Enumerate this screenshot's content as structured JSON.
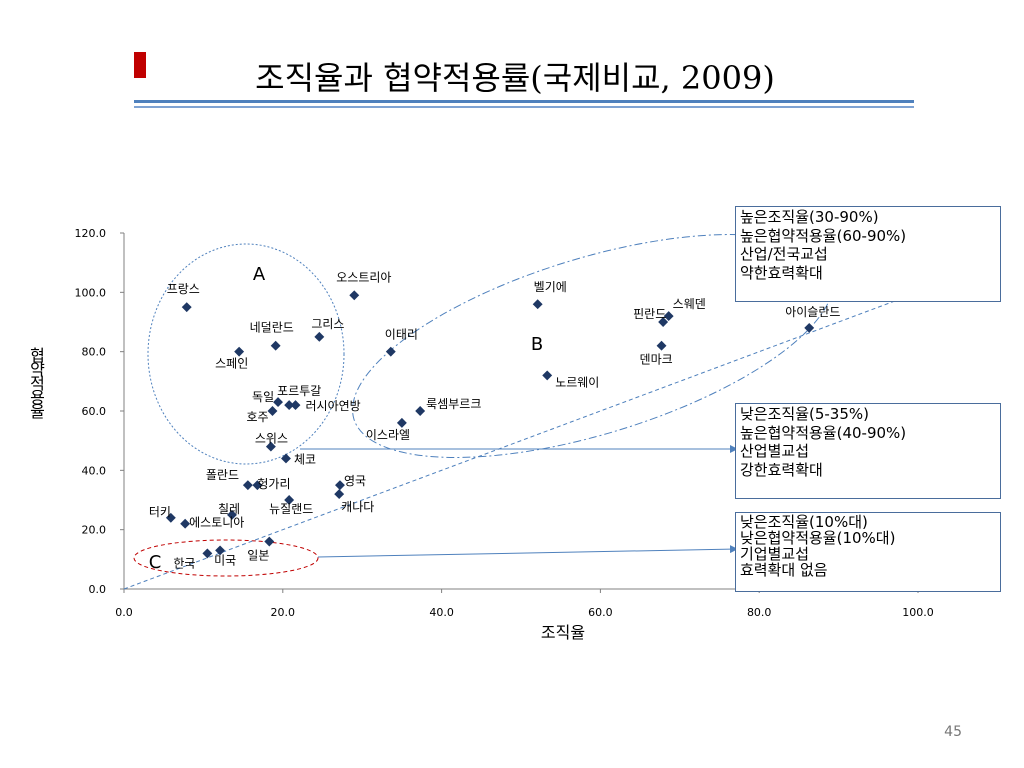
{
  "slide": {
    "title": "조직율과 협약적용률(국제비교, 2009)",
    "page_number": "45",
    "accent_color": "#c00000",
    "rule_color": "#4f81bd"
  },
  "chart_data": {
    "type": "scatter",
    "title": "",
    "xlabel": "조직율",
    "ylabel": "협약적용율",
    "xlim": [
      0,
      100
    ],
    "ylim": [
      0,
      120
    ],
    "x_ticks": [
      "0.0",
      "20.0",
      "40.0",
      "60.0",
      "80.0",
      "100.0"
    ],
    "y_ticks": [
      "0.0",
      "20.0",
      "40.0",
      "60.0",
      "80.0",
      "100.0",
      "120.0"
    ],
    "grid": false,
    "marker_color": "#1f3864",
    "points": [
      {
        "label": "프랑스",
        "x": 7.9,
        "y": 95
      },
      {
        "label": "오스트리아",
        "x": 29.0,
        "y": 99
      },
      {
        "label": "네덜란드",
        "x": 19.1,
        "y": 82
      },
      {
        "label": "그리스",
        "x": 24.6,
        "y": 85
      },
      {
        "label": "스페인",
        "x": 14.5,
        "y": 80
      },
      {
        "label": "독일",
        "x": 19.4,
        "y": 63
      },
      {
        "label": "포르투갈",
        "x": 20.8,
        "y": 62
      },
      {
        "label": "러시아연방",
        "x": 21.6,
        "y": 62
      },
      {
        "label": "호주",
        "x": 18.7,
        "y": 60
      },
      {
        "label": "스위스",
        "x": 18.5,
        "y": 48
      },
      {
        "label": "체코",
        "x": 20.4,
        "y": 44
      },
      {
        "label": "벨기에",
        "x": 52.1,
        "y": 96
      },
      {
        "label": "스웨덴",
        "x": 68.6,
        "y": 92
      },
      {
        "label": "핀란드",
        "x": 67.9,
        "y": 90
      },
      {
        "label": "덴마크",
        "x": 67.7,
        "y": 82
      },
      {
        "label": "아이슬란드",
        "x": 86.3,
        "y": 88
      },
      {
        "label": "이태리",
        "x": 33.6,
        "y": 80
      },
      {
        "label": "노르웨이",
        "x": 53.3,
        "y": 72
      },
      {
        "label": "룩셈부르크",
        "x": 37.3,
        "y": 60
      },
      {
        "label": "이스라엘",
        "x": 35.0,
        "y": 56
      },
      {
        "label": "폴란드",
        "x": 15.6,
        "y": 35
      },
      {
        "label": "헝가리",
        "x": 16.8,
        "y": 35
      },
      {
        "label": "영국",
        "x": 27.2,
        "y": 35
      },
      {
        "label": "캐나다",
        "x": 27.1,
        "y": 32
      },
      {
        "label": "뉴질랜드",
        "x": 20.8,
        "y": 30
      },
      {
        "label": "칠레",
        "x": 13.6,
        "y": 25
      },
      {
        "label": "터키",
        "x": 5.9,
        "y": 24
      },
      {
        "label": "에스토니아",
        "x": 7.7,
        "y": 22
      },
      {
        "label": "일본",
        "x": 18.3,
        "y": 16
      },
      {
        "label": "한국",
        "x": 10.5,
        "y": 12
      },
      {
        "label": "미국",
        "x": 12.1,
        "y": 13
      }
    ],
    "group_labels": [
      "A",
      "B",
      "C"
    ],
    "annotations": [
      {
        "lines": [
          "높은조직율(30-90%)",
          "높은협약적용율(60-90%)",
          "산업/전국교섭",
          "약한효력확대"
        ]
      },
      {
        "lines": [
          "낮은조직율(5-35%)",
          "높은협약적용율(40-90%)",
          "산업별교섭",
          "강한효력확대"
        ]
      },
      {
        "lines": [
          "낮은조직율(10%대)",
          "낮은협약적용율(10%대)",
          "기업별교섭",
          "효력확대 없음"
        ]
      }
    ]
  }
}
